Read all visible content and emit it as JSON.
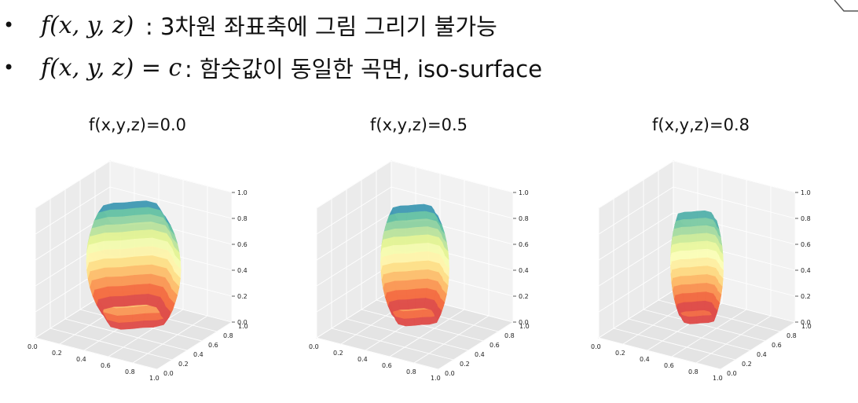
{
  "bullets": [
    {
      "marker": "•",
      "formula": "f(x, y, z)",
      "desc": ": 3차원 좌표축에 그림 그리기 불가능"
    },
    {
      "marker": "•",
      "formula": "f(x, y, z) = c",
      "desc": ": 함숫값이 동일한 곡면, iso-surface"
    }
  ],
  "panels": [
    {
      "title": "f(x,y,z)=0.0",
      "level": 0.0
    },
    {
      "title": "f(x,y,z)=0.5",
      "level": 0.5
    },
    {
      "title": "f(x,y,z)=0.8",
      "level": 0.8
    }
  ],
  "axis_ticks": {
    "x": [
      "0.0",
      "0.2",
      "0.4",
      "0.6",
      "0.8",
      "1.0"
    ],
    "y": [
      "0.0",
      "0.2",
      "0.4",
      "0.6",
      "0.8",
      "1.0"
    ],
    "z": [
      "0.0",
      "0.2",
      "0.4",
      "0.6",
      "0.8",
      "1.0"
    ]
  },
  "colormap": [
    "#9e0142",
    "#d53e4f",
    "#f46d43",
    "#fdae61",
    "#fee08b",
    "#ffffbf",
    "#e6f598",
    "#abdda4",
    "#66c2a5",
    "#3288bd",
    "#5e4fa2"
  ]
}
